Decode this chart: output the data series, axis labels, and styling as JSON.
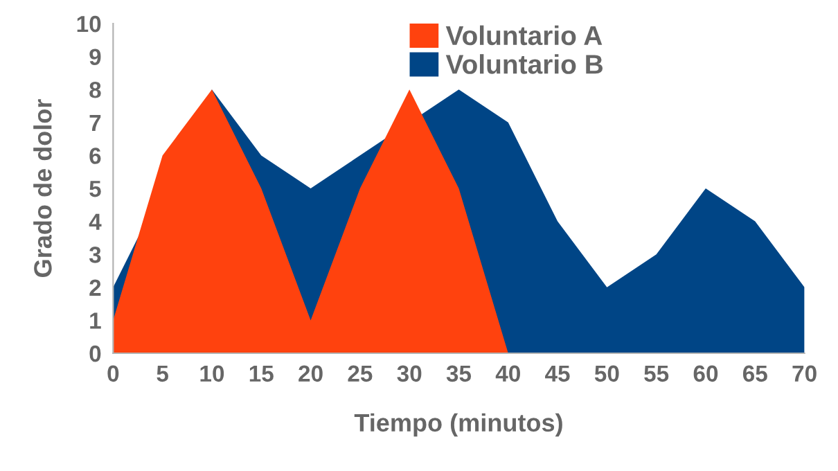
{
  "chart_data": {
    "type": "area",
    "xlabel": "Tiempo (minutos)",
    "ylabel": "Grado de dolor",
    "xlim": [
      0,
      70
    ],
    "xticks": [
      0,
      5,
      10,
      15,
      20,
      25,
      30,
      35,
      40,
      45,
      50,
      55,
      60,
      65,
      70
    ],
    "ylim": [
      0,
      10
    ],
    "yticks": [
      0,
      1,
      2,
      3,
      4,
      5,
      6,
      7,
      8,
      9,
      10
    ],
    "grid": false,
    "legend": "top right",
    "series": [
      {
        "name": "Voluntario B",
        "color": "#004586",
        "x": [
          0,
          5,
          10,
          15,
          20,
          25,
          30,
          35,
          40,
          45,
          50,
          55,
          60,
          65,
          70
        ],
        "values": [
          2,
          null,
          8,
          6,
          5,
          null,
          null,
          8,
          7,
          4,
          2,
          3,
          5,
          4,
          2
        ]
      },
      {
        "name": "Voluntario A",
        "color": "#ff420e",
        "x": [
          0,
          5,
          10,
          15,
          20,
          25,
          30,
          35,
          40
        ],
        "values": [
          1,
          6,
          8,
          5,
          1,
          5,
          8,
          5,
          0
        ]
      }
    ]
  }
}
